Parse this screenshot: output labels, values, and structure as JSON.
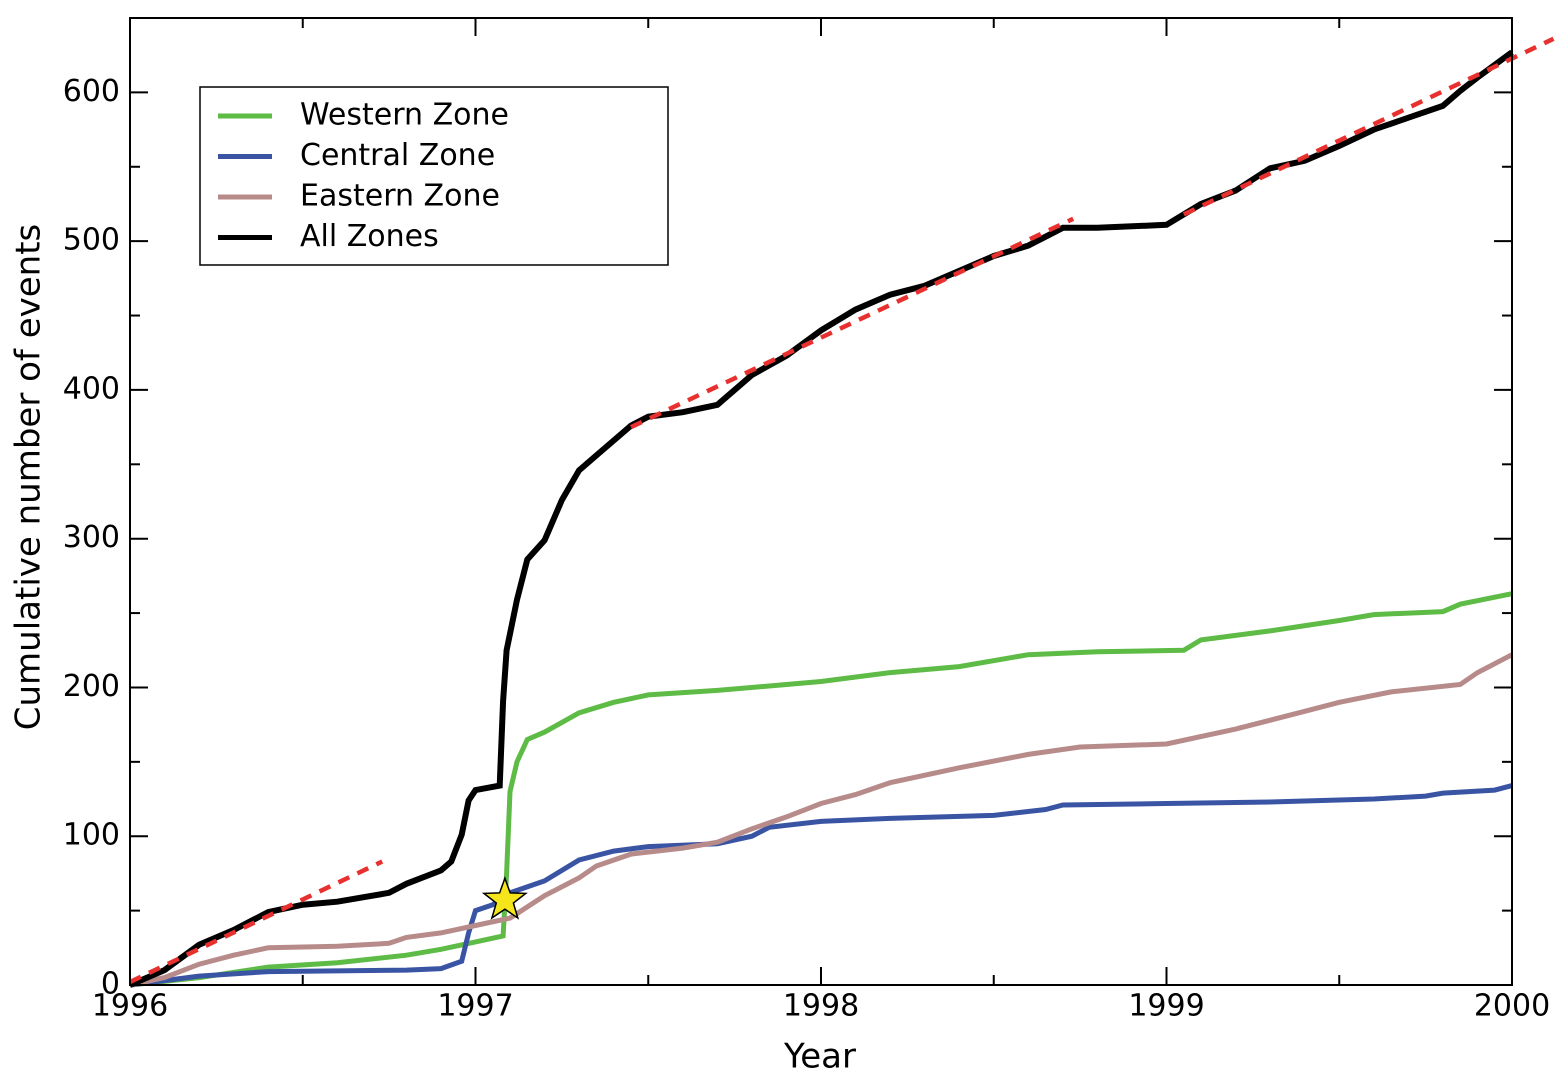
{
  "chart_data": {
    "type": "line",
    "x_label": "Year",
    "y_label": "Cumulative number of events",
    "xlim": [
      1996,
      2000
    ],
    "ylim": [
      0,
      650
    ],
    "xticks": [
      1996,
      1997,
      1998,
      1999,
      2000
    ],
    "yticks": [
      0,
      100,
      200,
      300,
      400,
      500,
      600
    ],
    "xminorticks": [
      1996.5,
      1997.5,
      1998.5,
      1999.5
    ],
    "yminorticks": [
      50,
      150,
      250,
      350,
      450,
      550
    ],
    "legend": "upper left",
    "series": [
      {
        "name": "Western Zone",
        "color": "#5dbb46",
        "x": [
          1996,
          1996.2,
          1996.4,
          1996.6,
          1996.8,
          1996.9,
          1997.0,
          1997.08,
          1997.09,
          1997.1,
          1997.12,
          1997.15,
          1997.2,
          1997.3,
          1997.4,
          1997.5,
          1997.7,
          1997.9,
          1998.0,
          1998.2,
          1998.4,
          1998.6,
          1998.8,
          1999.05,
          1999.1,
          1999.3,
          1999.5,
          1999.6,
          1999.8,
          1999.85,
          2000
        ],
        "values": [
          0,
          5,
          12,
          15,
          20,
          24,
          29,
          33,
          75,
          130,
          150,
          165,
          170,
          183,
          190,
          195,
          198,
          202,
          204,
          210,
          214,
          222,
          224,
          225,
          232,
          238,
          245,
          249,
          251,
          256,
          263
        ]
      },
      {
        "name": "Central Zone",
        "color": "#3a54a4",
        "x": [
          1996,
          1996.2,
          1996.4,
          1996.8,
          1996.9,
          1996.96,
          1996.98,
          1997.0,
          1997.05,
          1997.1,
          1997.2,
          1997.3,
          1997.4,
          1997.5,
          1997.7,
          1997.8,
          1997.85,
          1998.0,
          1998.2,
          1998.5,
          1998.65,
          1998.7,
          1999.0,
          1999.3,
          1999.6,
          1999.75,
          1999.8,
          1999.95,
          2000
        ],
        "values": [
          0,
          6,
          9,
          10,
          11,
          16,
          35,
          50,
          54,
          62,
          70,
          84,
          90,
          93,
          95,
          100,
          106,
          110,
          112,
          114,
          118,
          121,
          122,
          123,
          125,
          127,
          129,
          131,
          134
        ]
      },
      {
        "name": "Eastern Zone",
        "color": "#b88b8b",
        "x": [
          1996,
          1996.1,
          1996.2,
          1996.3,
          1996.4,
          1996.6,
          1996.75,
          1996.8,
          1996.9,
          1997.0,
          1997.1,
          1997.2,
          1997.3,
          1997.35,
          1997.45,
          1997.6,
          1997.7,
          1997.8,
          1997.9,
          1998.0,
          1998.1,
          1998.2,
          1998.4,
          1998.6,
          1998.75,
          1999.0,
          1999.2,
          1999.4,
          1999.5,
          1999.65,
          1999.85,
          1999.9,
          2000
        ],
        "values": [
          0,
          5,
          14,
          20,
          25,
          26,
          28,
          32,
          35,
          40,
          45,
          60,
          72,
          80,
          88,
          92,
          96,
          105,
          113,
          122,
          128,
          136,
          146,
          155,
          160,
          162,
          172,
          184,
          190,
          197,
          202,
          210,
          222
        ]
      },
      {
        "name": "All Zones",
        "color": "#000000",
        "x": [
          1996,
          1996.1,
          1996.2,
          1996.3,
          1996.4,
          1996.5,
          1996.6,
          1996.75,
          1996.8,
          1996.9,
          1996.93,
          1996.96,
          1996.98,
          1997.0,
          1997.07,
          1997.08,
          1997.09,
          1997.12,
          1997.15,
          1997.2,
          1997.25,
          1997.3,
          1997.35,
          1997.4,
          1997.45,
          1997.5,
          1997.6,
          1997.7,
          1997.8,
          1997.9,
          1998.0,
          1998.1,
          1998.2,
          1998.3,
          1998.4,
          1998.5,
          1998.6,
          1998.7,
          1998.8,
          1999.0,
          1999.1,
          1999.2,
          1999.3,
          1999.4,
          1999.5,
          1999.6,
          1999.7,
          1999.8,
          1999.85,
          1999.9,
          2000
        ],
        "values": [
          0,
          10,
          27,
          37,
          49,
          54,
          56,
          62,
          68,
          77,
          83,
          101,
          124,
          131,
          134,
          191,
          225,
          259,
          286,
          299,
          326,
          346,
          356,
          366,
          376,
          382,
          385,
          390,
          410,
          423,
          440,
          454,
          464,
          470,
          480,
          490,
          497,
          509,
          509,
          511,
          525,
          534,
          549,
          554,
          564,
          575,
          583,
          591,
          601,
          610,
          627
        ]
      }
    ],
    "fit_lines": [
      {
        "color": "#e8312f",
        "x": [
          1996,
          1996.73
        ],
        "values": [
          2,
          83
        ]
      },
      {
        "color": "#e8312f",
        "x": [
          1997.45,
          1998.73
        ],
        "values": [
          375,
          515
        ]
      },
      {
        "color": "#e8312f",
        "x": [
          1999.05,
          2000.12
        ],
        "values": [
          518,
          636
        ]
      }
    ],
    "marker": {
      "color": "#f5e51b",
      "x": 1997.085,
      "y": 57
    }
  }
}
